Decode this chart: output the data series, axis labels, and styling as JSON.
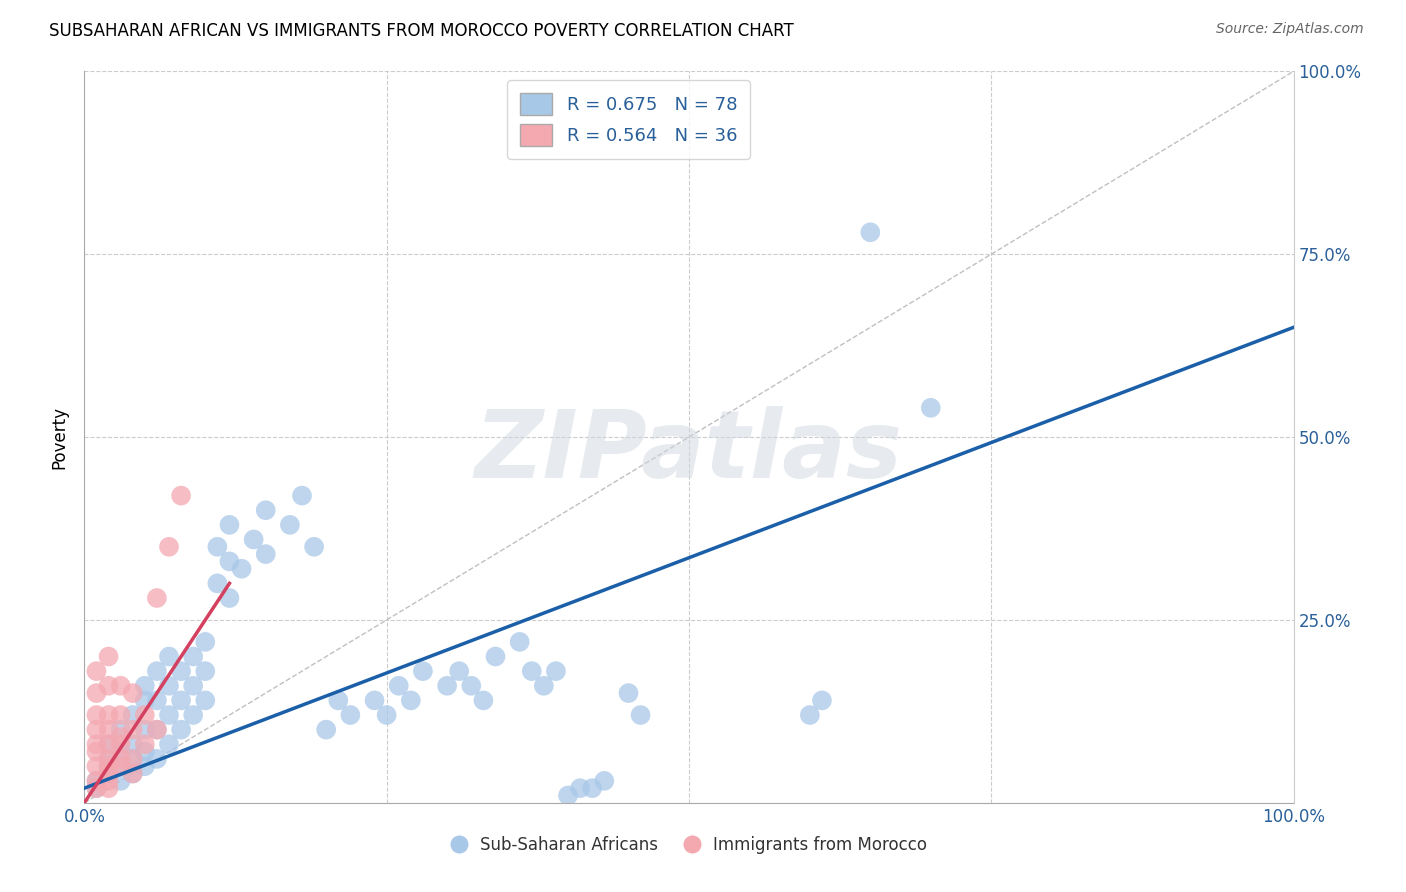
{
  "title": "SUBSAHARAN AFRICAN VS IMMIGRANTS FROM MOROCCO POVERTY CORRELATION CHART",
  "source": "Source: ZipAtlas.com",
  "xlim": [
    0,
    100
  ],
  "ylim": [
    0,
    100
  ],
  "blue_color": "#a8c8e8",
  "pink_color": "#f4a8b0",
  "blue_line_color": "#1a5fa8",
  "pink_line_color": "#d44060",
  "watermark": "ZIPatlas",
  "legend_label_blue": "Sub-Saharan Africans",
  "legend_label_pink": "Immigrants from Morocco",
  "ylabel": "Poverty",
  "blue_scatter": [
    [
      1,
      2
    ],
    [
      1,
      3
    ],
    [
      2,
      4
    ],
    [
      2,
      5
    ],
    [
      2,
      6
    ],
    [
      2,
      8
    ],
    [
      3,
      3
    ],
    [
      3,
      5
    ],
    [
      3,
      7
    ],
    [
      3,
      10
    ],
    [
      4,
      4
    ],
    [
      4,
      6
    ],
    [
      4,
      8
    ],
    [
      4,
      12
    ],
    [
      5,
      5
    ],
    [
      5,
      7
    ],
    [
      5,
      10
    ],
    [
      5,
      14
    ],
    [
      5,
      16
    ],
    [
      6,
      6
    ],
    [
      6,
      10
    ],
    [
      6,
      14
    ],
    [
      6,
      18
    ],
    [
      7,
      8
    ],
    [
      7,
      12
    ],
    [
      7,
      16
    ],
    [
      7,
      20
    ],
    [
      8,
      10
    ],
    [
      8,
      14
    ],
    [
      8,
      18
    ],
    [
      9,
      12
    ],
    [
      9,
      16
    ],
    [
      9,
      20
    ],
    [
      10,
      14
    ],
    [
      10,
      18
    ],
    [
      10,
      22
    ],
    [
      11,
      30
    ],
    [
      11,
      35
    ],
    [
      12,
      28
    ],
    [
      12,
      33
    ],
    [
      12,
      38
    ],
    [
      13,
      32
    ],
    [
      14,
      36
    ],
    [
      15,
      34
    ],
    [
      15,
      40
    ],
    [
      17,
      38
    ],
    [
      18,
      42
    ],
    [
      19,
      35
    ],
    [
      20,
      10
    ],
    [
      21,
      14
    ],
    [
      22,
      12
    ],
    [
      24,
      14
    ],
    [
      25,
      12
    ],
    [
      26,
      16
    ],
    [
      27,
      14
    ],
    [
      28,
      18
    ],
    [
      30,
      16
    ],
    [
      31,
      18
    ],
    [
      32,
      16
    ],
    [
      33,
      14
    ],
    [
      34,
      20
    ],
    [
      36,
      22
    ],
    [
      37,
      18
    ],
    [
      38,
      16
    ],
    [
      39,
      18
    ],
    [
      40,
      1
    ],
    [
      41,
      2
    ],
    [
      42,
      2
    ],
    [
      43,
      3
    ],
    [
      45,
      15
    ],
    [
      46,
      12
    ],
    [
      60,
      12
    ],
    [
      61,
      14
    ],
    [
      65,
      78
    ],
    [
      70,
      54
    ]
  ],
  "pink_scatter": [
    [
      1,
      3
    ],
    [
      1,
      5
    ],
    [
      1,
      8
    ],
    [
      1,
      10
    ],
    [
      1,
      12
    ],
    [
      1,
      15
    ],
    [
      1,
      18
    ],
    [
      2,
      4
    ],
    [
      2,
      6
    ],
    [
      2,
      8
    ],
    [
      2,
      10
    ],
    [
      2,
      12
    ],
    [
      2,
      16
    ],
    [
      2,
      20
    ],
    [
      3,
      5
    ],
    [
      3,
      8
    ],
    [
      3,
      12
    ],
    [
      3,
      16
    ],
    [
      4,
      6
    ],
    [
      4,
      10
    ],
    [
      4,
      15
    ],
    [
      5,
      8
    ],
    [
      5,
      12
    ],
    [
      6,
      10
    ],
    [
      6,
      28
    ],
    [
      7,
      35
    ],
    [
      8,
      42
    ],
    [
      1,
      2
    ],
    [
      1,
      7
    ],
    [
      2,
      3
    ],
    [
      2,
      5
    ],
    [
      3,
      6
    ],
    [
      3,
      9
    ],
    [
      4,
      4
    ],
    [
      2,
      2
    ]
  ],
  "blue_line": {
    "x0": 0,
    "x1": 100,
    "y0": 2,
    "y1": 65
  },
  "pink_line": {
    "x0": 0,
    "x1": 12,
    "y0": 0,
    "y1": 30
  },
  "ref_line": {
    "x0": 0,
    "x1": 100,
    "y0": 0,
    "y1": 100
  }
}
